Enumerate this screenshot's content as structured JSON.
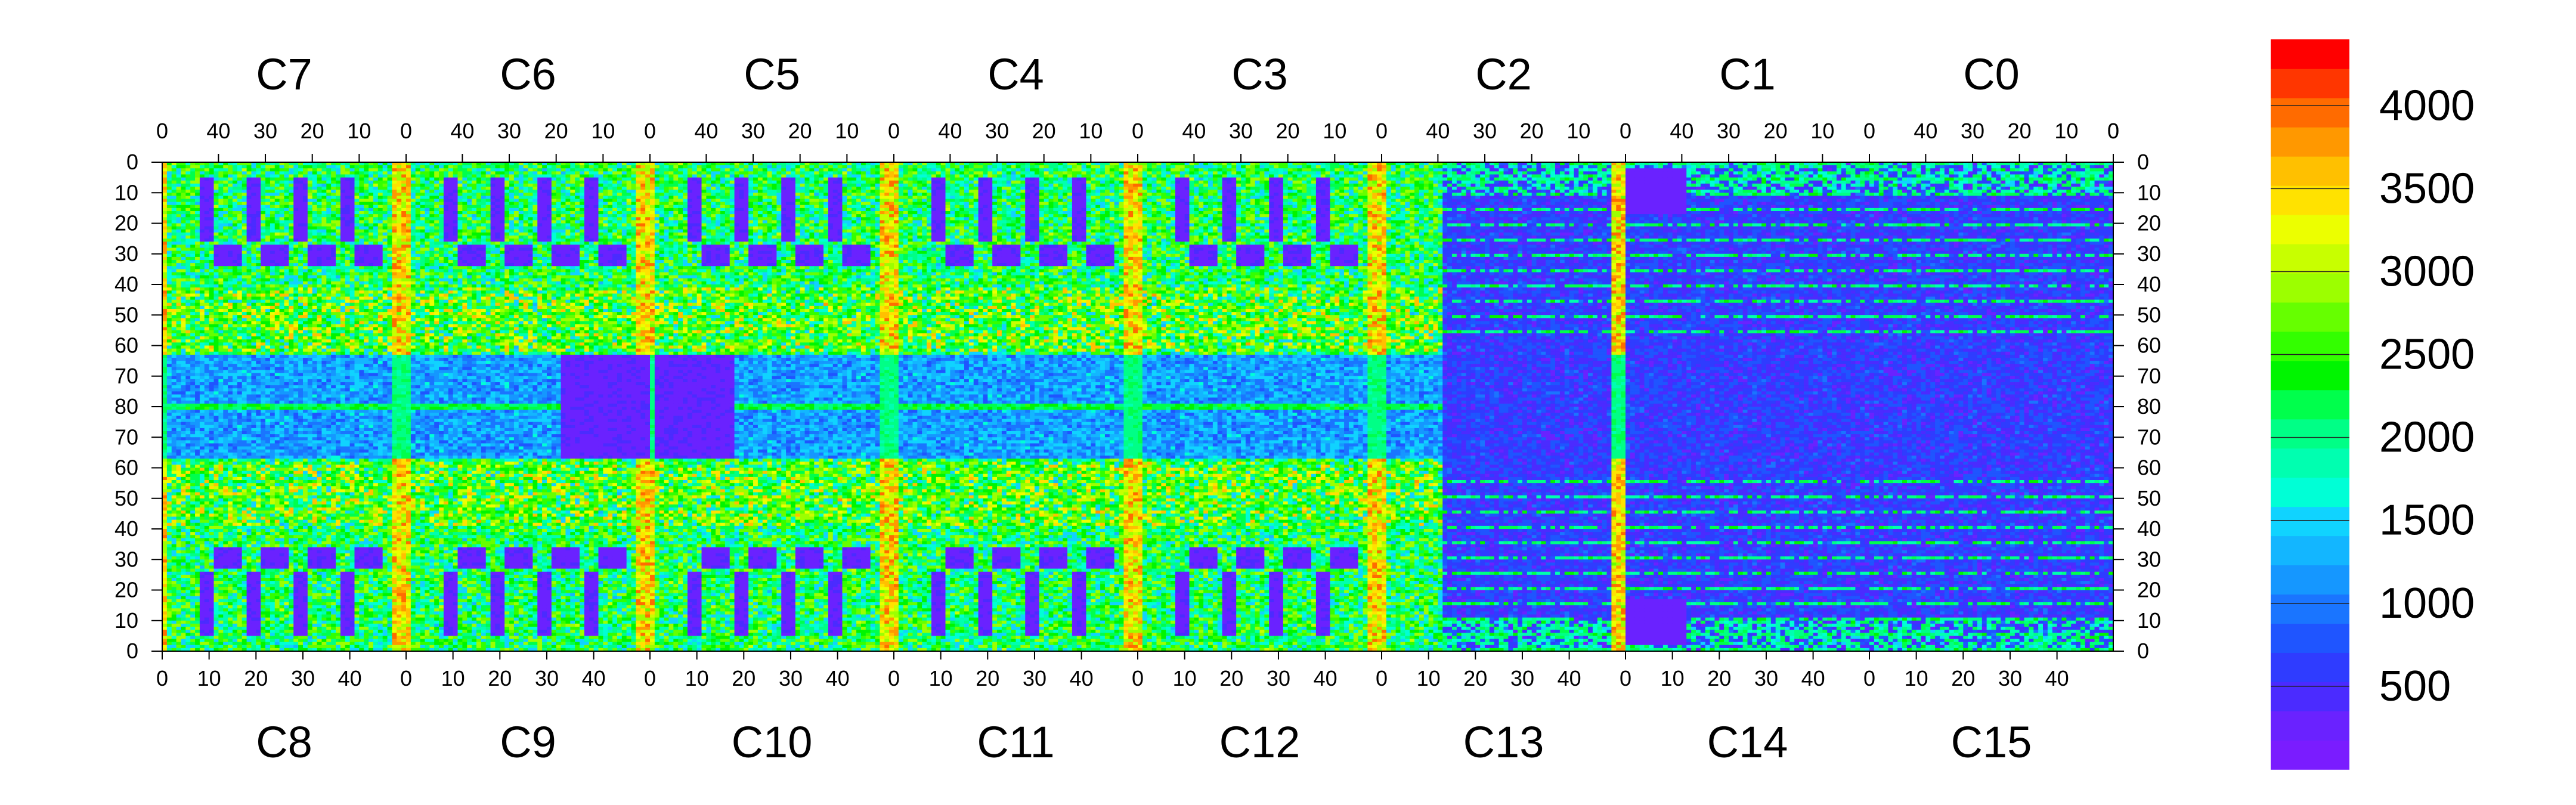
{
  "chart_data": {
    "type": "heatmap",
    "title": "",
    "xlabel": "",
    "ylabel": "",
    "chips_top": [
      "C7",
      "C6",
      "C5",
      "C4",
      "C3",
      "C2",
      "C1",
      "C0"
    ],
    "chips_bottom": [
      "C8",
      "C9",
      "C10",
      "C11",
      "C12",
      "C13",
      "C14",
      "C15"
    ],
    "x_tick_labels_top": [
      "40",
      "30",
      "20",
      "10",
      "0"
    ],
    "x_tick_labels_bottom": [
      "0",
      "10",
      "20",
      "30",
      "40"
    ],
    "columns_per_chip": 52,
    "rows_per_half": 80,
    "y_tick_labels_top_half": [
      "0",
      "10",
      "20",
      "30",
      "40",
      "50",
      "60",
      "70",
      "80"
    ],
    "y_tick_labels_bottom_half": [
      "70",
      "60",
      "50",
      "40",
      "30",
      "20",
      "10",
      "0"
    ],
    "zlim": [
      0,
      4400
    ],
    "colorbar_ticks": [
      500,
      1000,
      1500,
      2000,
      2500,
      3000,
      3500,
      4000
    ],
    "colorbar_tick_labels": [
      "500",
      "1000",
      "1500",
      "2000",
      "2500",
      "3000",
      "3500",
      "4000"
    ],
    "colorbar_colors": [
      "#7a1cff",
      "#6a22ff",
      "#4b2bff",
      "#2f3cff",
      "#1f55ff",
      "#1a75ff",
      "#1597ff",
      "#13b6ff",
      "#10d3ff",
      "#00ffd6",
      "#00ffb0",
      "#00ff86",
      "#00ff4c",
      "#00f500",
      "#33ff00",
      "#66ff00",
      "#9cff00",
      "#c8ff00",
      "#ecff00",
      "#ffe200",
      "#ffc000",
      "#ff9800",
      "#ff6b00",
      "#ff3600",
      "#ff0000"
    ],
    "regions": {
      "top_chips_mean": 2200,
      "edge_column_mean": 4000,
      "central_band_mean": 1200,
      "right_chips_mean": 600,
      "blob_mean": 200
    }
  }
}
